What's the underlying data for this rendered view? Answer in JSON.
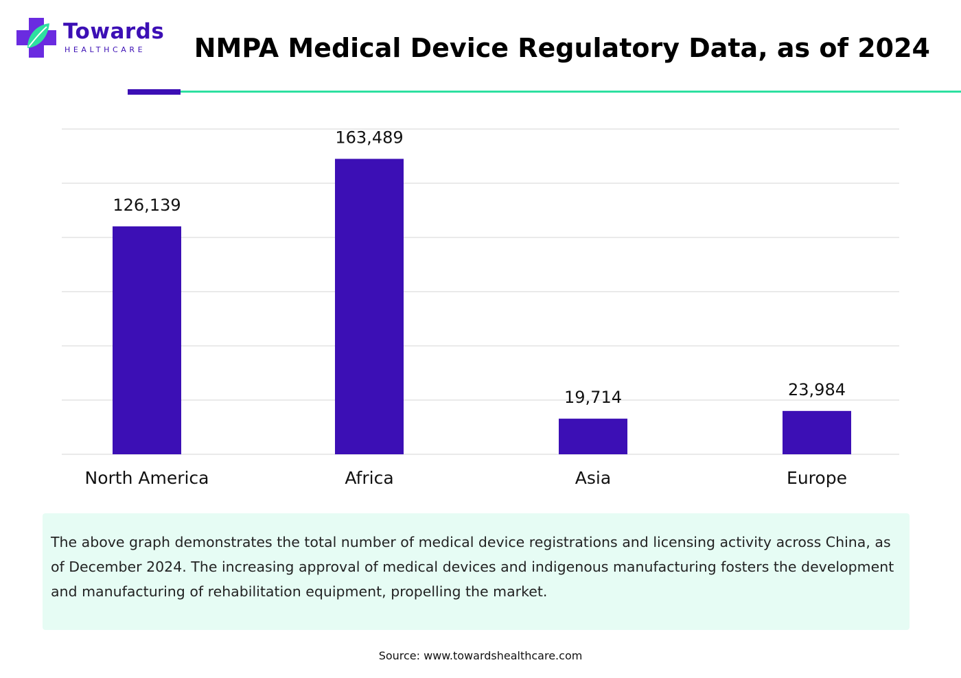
{
  "brand": {
    "name": "Towards",
    "subtitle": "HEALTHCARE",
    "primary_color": "#3c0fb5",
    "accent_color": "#2ee0a0"
  },
  "header": {
    "title": "NMPA Medical Device Regulatory Data, as of 2024"
  },
  "chart_data": {
    "type": "bar",
    "title": "NMPA Medical Device Regulatory Data, as of 2024",
    "categories": [
      "North America",
      "Africa",
      "Asia",
      "Europe"
    ],
    "values": [
      126139,
      163489,
      19714,
      23984
    ],
    "value_labels": [
      "126,139",
      "163,489",
      "19,714",
      "23,984"
    ],
    "xlabel": "",
    "ylabel": "",
    "ylim": [
      0,
      180000
    ],
    "gridlines": [
      0,
      30000,
      60000,
      90000,
      120000,
      150000,
      180000
    ],
    "grid": true,
    "bar_color": "#3c0fb5",
    "grid_color": "#dddddd"
  },
  "description": {
    "text": "The above graph demonstrates the total number of medical device registrations and licensing activity across China, as of December 2024. The increasing  approval of medical devices and indigenous manufacturing fosters the development and manufacturing of rehabilitation equipment, propelling the market."
  },
  "footer": {
    "source": "Source: www.towardshealthcare.com"
  }
}
